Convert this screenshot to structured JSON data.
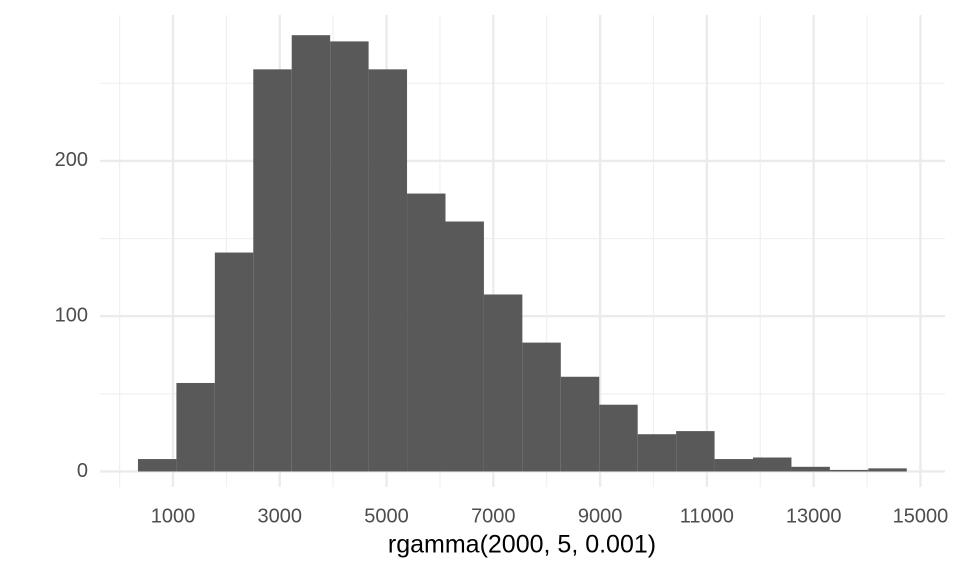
{
  "chart_data": {
    "type": "histogram",
    "x_label": "rgamma(2000, 5, 0.001)",
    "bins": [
      344,
      1064,
      1784,
      2504,
      3224,
      3944,
      4664,
      5384,
      6104,
      6824,
      7544,
      8264,
      8984,
      9704,
      10424,
      11144,
      11864,
      12584,
      13304,
      14024,
      14744
    ],
    "values": [
      8,
      57,
      141,
      259,
      281,
      277,
      259,
      179,
      161,
      114,
      83,
      61,
      43,
      24,
      26,
      8,
      9,
      3,
      1,
      2
    ],
    "color": "#595959",
    "xlim": [
      -367,
      15460
    ],
    "xticks": [
      1000,
      3000,
      5000,
      7000,
      9000,
      11000,
      13000,
      15000
    ],
    "minor_xgrid": [
      0,
      2000,
      4000,
      6000,
      8000,
      10000,
      12000,
      14000
    ],
    "ylim": [
      -10,
      294
    ],
    "yticks": [
      0,
      100,
      200
    ],
    "minor_ygrid": [
      50,
      150,
      250
    ],
    "grid": true
  }
}
